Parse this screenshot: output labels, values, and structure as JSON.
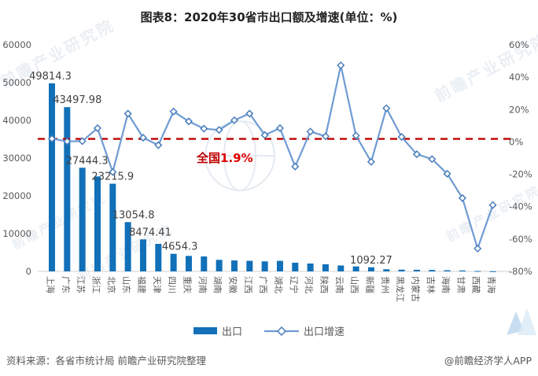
{
  "title": "图表8：2020年30省市出口额及增速(单位：%)",
  "chart_data": {
    "type": "bar",
    "title": "图表8：2020年30省市出口额及增速(单位：%)",
    "categories": [
      "上海",
      "广东",
      "江苏",
      "浙江",
      "北京",
      "山东",
      "福建",
      "天津",
      "四川",
      "重庆",
      "河南",
      "湖南",
      "安徽",
      "江西",
      "广西",
      "湖北",
      "辽宁",
      "河北",
      "陕西",
      "云南",
      "山西",
      "新疆",
      "贵州",
      "黑龙江",
      "内蒙古",
      "吉林",
      "海南",
      "甘肃",
      "西藏",
      "青海"
    ],
    "series": [
      {
        "name": "出口",
        "type": "bar",
        "values": [
          49814.3,
          43497.98,
          27444.3,
          25150,
          23215.9,
          13054.8,
          8474.41,
          7290,
          4654.3,
          4100,
          3960,
          3060,
          2900,
          2800,
          2650,
          2790,
          2290,
          2080,
          1880,
          1560,
          1310,
          1092.27,
          560,
          460,
          430,
          380,
          300,
          240,
          110,
          40
        ],
        "labels": {
          "0": "49814.3",
          "1": "43497.98",
          "2": "27444.3",
          "4": "23215.9",
          "5": "13054.8",
          "6": "8474.41",
          "8": "4654.3",
          "21": "1092.27"
        }
      },
      {
        "name": "出口增速",
        "type": "line",
        "values": [
          2,
          0.3,
          0.5,
          8.5,
          -18.6,
          17.5,
          2.6,
          -2,
          18.8,
          12.7,
          8.2,
          7.4,
          13.4,
          17.5,
          4.2,
          8.5,
          -15.2,
          6.4,
          3.5,
          47.3,
          3.9,
          -12.3,
          20.8,
          3.1,
          -7.6,
          -10.6,
          -19.7,
          -34.7,
          -65.9,
          -39
        ]
      }
    ],
    "left_axis": {
      "ticks": [
        "60000",
        "50000",
        "40000",
        "30000",
        "20000",
        "10000",
        "0"
      ],
      "min": 0,
      "max": 60000
    },
    "right_axis": {
      "ticks": [
        "60%",
        "40%",
        "20%",
        "0%",
        "-20%",
        "-40%",
        "-60%",
        "-80%"
      ],
      "min": -80,
      "max": 60
    },
    "reference_line": {
      "value": 1.9,
      "label_prefix": "全国",
      "label_value": "1.9%"
    },
    "grid": "off",
    "legend_position": "bottom"
  },
  "legend": {
    "items": [
      {
        "label": "出口"
      },
      {
        "label": "出口增速"
      }
    ]
  },
  "annotation": {
    "prefix": "全国",
    "value": "1.9%"
  },
  "footer": {
    "source": "资料来源：各省市统计局 前瞻产业研究院整理",
    "credit": "@前瞻经济学人APP"
  },
  "watermark": {
    "text": "前瞻产业研究院"
  },
  "colors": {
    "bar": "#1170b8",
    "line": "#6f9bd3",
    "marker_stroke": "#4a7ebb",
    "marker_fill": "#ffffff",
    "reference": "#bf0000",
    "axis_text": "#595959",
    "value_label_text": "#404040",
    "axis_line": "#d0d0d0"
  }
}
